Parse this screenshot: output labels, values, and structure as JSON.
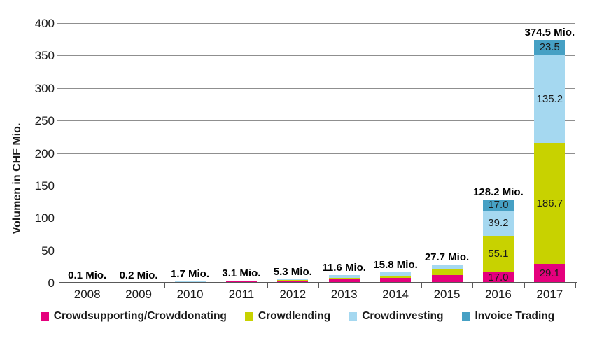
{
  "chart_data": {
    "type": "bar",
    "variant": "stacked",
    "title": "",
    "ylabel": "Volumen in CHF Mio.",
    "xlabel": "",
    "ylim": [
      0,
      400
    ],
    "yticks": [
      0,
      50,
      100,
      150,
      200,
      250,
      300,
      350,
      400
    ],
    "grid": true,
    "legend_position": "bottom",
    "categories": [
      "2008",
      "2009",
      "2010",
      "2011",
      "2012",
      "2013",
      "2014",
      "2015",
      "2016",
      "2017"
    ],
    "series": [
      {
        "name": "Crowdsupporting/Crowddonating",
        "color": "#e5007d",
        "values": [
          0.1,
          0.2,
          1.0,
          1.9,
          3.0,
          5.8,
          7.7,
          12.3,
          17.0,
          29.1
        ]
      },
      {
        "name": "Crowdlending",
        "color": "#c8d200",
        "values": [
          0,
          0,
          0.2,
          0.2,
          0.9,
          2.1,
          3.5,
          7.9,
          55.1,
          186.7
        ]
      },
      {
        "name": "Crowdinvesting",
        "color": "#a5d8f0",
        "values": [
          0,
          0,
          0.5,
          1.0,
          1.4,
          3.7,
          4.6,
          7.1,
          39.2,
          135.2
        ]
      },
      {
        "name": "Invoice Trading",
        "color": "#46a0c4",
        "values": [
          0,
          0,
          0,
          0,
          0,
          0,
          0,
          0.4,
          17.0,
          23.5
        ]
      }
    ],
    "totals": [
      0.1,
      0.2,
      1.7,
      3.1,
      5.3,
      11.6,
      15.8,
      27.7,
      128.2,
      374.5
    ],
    "total_labels": [
      "0.1 Mio.",
      "0.2 Mio.",
      "1.7 Mio.",
      "3.1 Mio.",
      "5.3 Mio.",
      "11.6 Mio.",
      "15.8 Mio.",
      "27.7 Mio.",
      "128.2 Mio.",
      "374.5 Mio."
    ],
    "segment_labels": {
      "2016": [
        "17.0",
        "55.1",
        "39.2",
        "17.0"
      ],
      "2017": [
        "29.1",
        "186.7",
        "135.2",
        "23.5"
      ]
    },
    "colors": {
      "gridline": "#8f8f8f",
      "axis": "#595959",
      "text": "#1a1a1a"
    }
  }
}
